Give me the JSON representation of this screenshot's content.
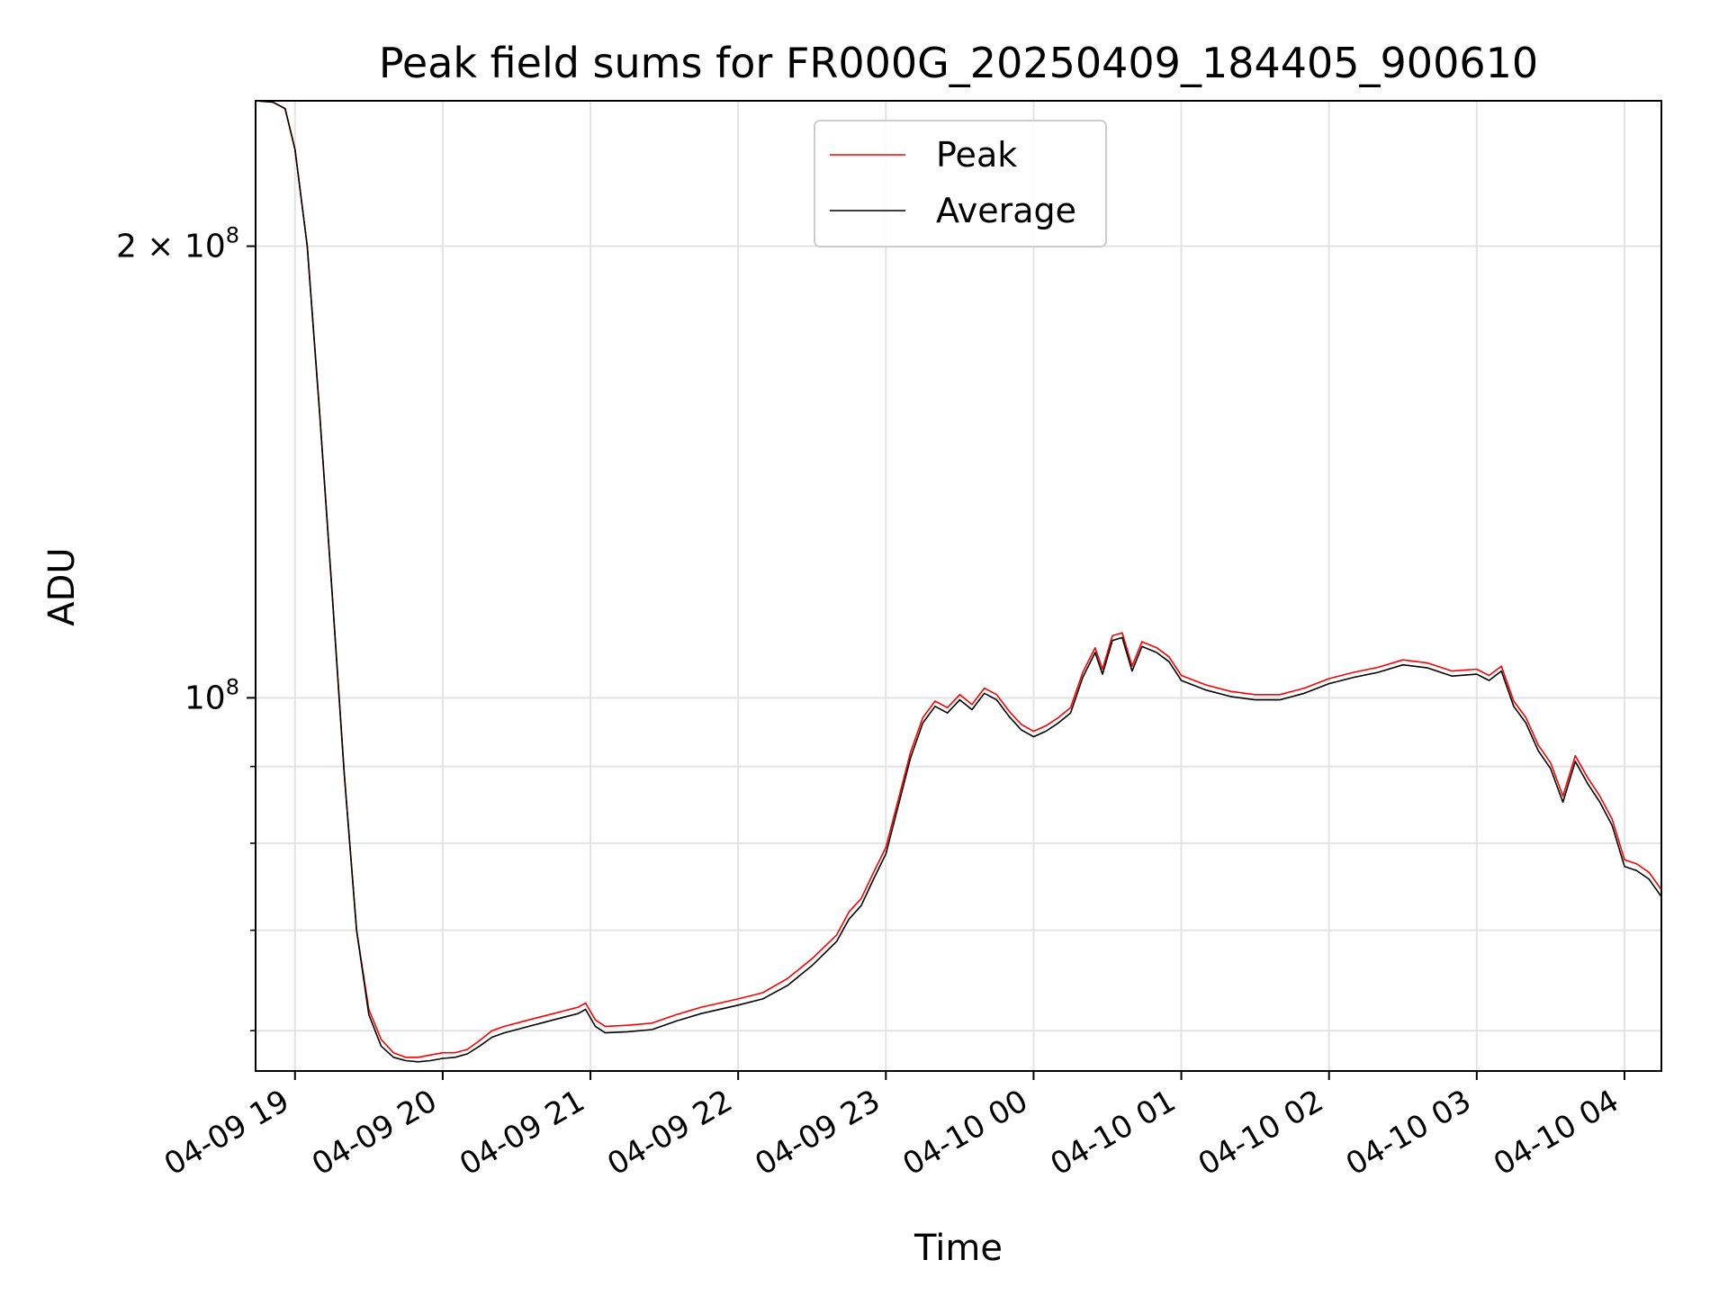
{
  "chart_data": {
    "type": "line",
    "title": "Peak field sums for FR000G_20250409_184405_900610",
    "xlabel": "Time",
    "ylabel": "ADU",
    "y_scale": "log",
    "grid": true,
    "legend_position": "upper center",
    "x_range": [
      "2025-04-09 18:44",
      "2025-04-10 04:15"
    ],
    "y_range": [
      56400000,
      250000000
    ],
    "x_ticks": [
      {
        "t": "2025-04-09 19:00",
        "label": "04-09 19"
      },
      {
        "t": "2025-04-09 20:00",
        "label": "04-09 20"
      },
      {
        "t": "2025-04-09 21:00",
        "label": "04-09 21"
      },
      {
        "t": "2025-04-09 22:00",
        "label": "04-09 22"
      },
      {
        "t": "2025-04-09 23:00",
        "label": "04-09 23"
      },
      {
        "t": "2025-04-10 00:00",
        "label": "04-10 00"
      },
      {
        "t": "2025-04-10 01:00",
        "label": "04-10 01"
      },
      {
        "t": "2025-04-10 02:00",
        "label": "04-10 02"
      },
      {
        "t": "2025-04-10 03:00",
        "label": "04-10 03"
      },
      {
        "t": "2025-04-10 04:00",
        "label": "04-10 04"
      }
    ],
    "y_major_ticks": [
      {
        "value": 100000000,
        "base": "10",
        "exp": "8"
      },
      {
        "value": 200000000,
        "base": "2 × 10",
        "exp": "8"
      }
    ],
    "y_minor_ticks": [
      60000000,
      70000000,
      80000000,
      90000000
    ],
    "series": [
      {
        "name": "Peak",
        "color": "#ff0000",
        "points": [
          [
            "2025-04-09 18:44",
            250000000
          ],
          [
            "2025-04-09 18:51",
            249500000
          ],
          [
            "2025-04-09 18:56",
            247000000
          ],
          [
            "2025-04-09 19:00",
            232000000
          ],
          [
            "2025-04-09 19:05",
            200000000
          ],
          [
            "2025-04-09 19:10",
            155000000
          ],
          [
            "2025-04-09 19:15",
            118000000
          ],
          [
            "2025-04-09 19:20",
            89000000
          ],
          [
            "2025-04-09 19:25",
            70000000
          ],
          [
            "2025-04-09 19:30",
            62000000
          ],
          [
            "2025-04-09 19:35",
            59200000
          ],
          [
            "2025-04-09 19:40",
            58000000
          ],
          [
            "2025-04-09 19:45",
            57600000
          ],
          [
            "2025-04-09 19:50",
            57600000
          ],
          [
            "2025-04-09 19:55",
            57800000
          ],
          [
            "2025-04-09 20:00",
            58000000
          ],
          [
            "2025-04-09 20:05",
            58000000
          ],
          [
            "2025-04-09 20:10",
            58300000
          ],
          [
            "2025-04-09 20:15",
            59100000
          ],
          [
            "2025-04-09 20:20",
            60000000
          ],
          [
            "2025-04-09 20:25",
            60400000
          ],
          [
            "2025-04-09 20:30",
            60700000
          ],
          [
            "2025-04-09 20:35",
            61000000
          ],
          [
            "2025-04-09 20:40",
            61300000
          ],
          [
            "2025-04-09 20:45",
            61600000
          ],
          [
            "2025-04-09 20:50",
            61900000
          ],
          [
            "2025-04-09 20:55",
            62200000
          ],
          [
            "2025-04-09 20:58",
            62600000
          ],
          [
            "2025-04-09 21:02",
            61000000
          ],
          [
            "2025-04-09 21:06",
            60400000
          ],
          [
            "2025-04-09 21:15",
            60500000
          ],
          [
            "2025-04-09 21:25",
            60700000
          ],
          [
            "2025-04-09 21:35",
            61500000
          ],
          [
            "2025-04-09 21:45",
            62200000
          ],
          [
            "2025-04-09 22:00",
            63000000
          ],
          [
            "2025-04-09 22:10",
            63600000
          ],
          [
            "2025-04-09 22:20",
            65000000
          ],
          [
            "2025-04-09 22:30",
            67000000
          ],
          [
            "2025-04-09 22:40",
            69500000
          ],
          [
            "2025-04-09 22:45",
            72000000
          ],
          [
            "2025-04-09 22:50",
            73500000
          ],
          [
            "2025-04-09 22:55",
            76500000
          ],
          [
            "2025-04-09 23:00",
            79500000
          ],
          [
            "2025-04-09 23:05",
            85500000
          ],
          [
            "2025-04-09 23:10",
            92000000
          ],
          [
            "2025-04-09 23:15",
            97000000
          ],
          [
            "2025-04-09 23:20",
            99500000
          ],
          [
            "2025-04-09 23:25",
            98500000
          ],
          [
            "2025-04-09 23:30",
            100500000
          ],
          [
            "2025-04-09 23:35",
            99000000
          ],
          [
            "2025-04-09 23:40",
            101500000
          ],
          [
            "2025-04-09 23:45",
            100500000
          ],
          [
            "2025-04-09 23:50",
            98000000
          ],
          [
            "2025-04-09 23:55",
            96000000
          ],
          [
            "2025-04-10 00:00",
            95000000
          ],
          [
            "2025-04-10 00:05",
            95800000
          ],
          [
            "2025-04-10 00:10",
            97000000
          ],
          [
            "2025-04-10 00:15",
            98500000
          ],
          [
            "2025-04-10 00:20",
            104000000
          ],
          [
            "2025-04-10 00:25",
            108000000
          ],
          [
            "2025-04-10 00:28",
            104500000
          ],
          [
            "2025-04-10 00:32",
            110000000
          ],
          [
            "2025-04-10 00:36",
            110500000
          ],
          [
            "2025-04-10 00:40",
            105000000
          ],
          [
            "2025-04-10 00:44",
            109000000
          ],
          [
            "2025-04-10 00:50",
            108000000
          ],
          [
            "2025-04-10 00:55",
            106500000
          ],
          [
            "2025-04-10 01:00",
            103500000
          ],
          [
            "2025-04-10 01:10",
            102000000
          ],
          [
            "2025-04-10 01:20",
            101000000
          ],
          [
            "2025-04-10 01:30",
            100500000
          ],
          [
            "2025-04-10 01:40",
            100500000
          ],
          [
            "2025-04-10 01:50",
            101500000
          ],
          [
            "2025-04-10 02:00",
            103000000
          ],
          [
            "2025-04-10 02:10",
            104000000
          ],
          [
            "2025-04-10 02:20",
            104800000
          ],
          [
            "2025-04-10 02:30",
            106000000
          ],
          [
            "2025-04-10 02:40",
            105500000
          ],
          [
            "2025-04-10 02:50",
            104200000
          ],
          [
            "2025-04-10 03:00",
            104500000
          ],
          [
            "2025-04-10 03:05",
            103500000
          ],
          [
            "2025-04-10 03:10",
            105000000
          ],
          [
            "2025-04-10 03:15",
            99500000
          ],
          [
            "2025-04-10 03:20",
            97000000
          ],
          [
            "2025-04-10 03:25",
            93000000
          ],
          [
            "2025-04-10 03:30",
            90500000
          ],
          [
            "2025-04-10 03:35",
            86000000
          ],
          [
            "2025-04-10 03:40",
            91500000
          ],
          [
            "2025-04-10 03:45",
            88500000
          ],
          [
            "2025-04-10 03:50",
            86000000
          ],
          [
            "2025-04-10 03:55",
            83000000
          ],
          [
            "2025-04-10 04:00",
            78000000
          ],
          [
            "2025-04-10 04:05",
            77500000
          ],
          [
            "2025-04-10 04:10",
            76500000
          ],
          [
            "2025-04-10 04:15",
            74500000
          ]
        ]
      },
      {
        "name": "Average",
        "color": "#000000",
        "points": [
          [
            "2025-04-09 18:44",
            250000000
          ],
          [
            "2025-04-09 18:51",
            249500000
          ],
          [
            "2025-04-09 18:56",
            247000000
          ],
          [
            "2025-04-09 19:00",
            232000000
          ],
          [
            "2025-04-09 19:05",
            200000000
          ],
          [
            "2025-04-09 19:10",
            155000000
          ],
          [
            "2025-04-09 19:15",
            118000000
          ],
          [
            "2025-04-09 19:20",
            89000000
          ],
          [
            "2025-04-09 19:25",
            70000000
          ],
          [
            "2025-04-09 19:30",
            61500000
          ],
          [
            "2025-04-09 19:35",
            58600000
          ],
          [
            "2025-04-09 19:40",
            57600000
          ],
          [
            "2025-04-09 19:45",
            57300000
          ],
          [
            "2025-04-09 19:50",
            57200000
          ],
          [
            "2025-04-09 19:55",
            57300000
          ],
          [
            "2025-04-09 20:00",
            57500000
          ],
          [
            "2025-04-09 20:05",
            57600000
          ],
          [
            "2025-04-09 20:10",
            57900000
          ],
          [
            "2025-04-09 20:15",
            58600000
          ],
          [
            "2025-04-09 20:20",
            59400000
          ],
          [
            "2025-04-09 20:25",
            59800000
          ],
          [
            "2025-04-09 20:30",
            60100000
          ],
          [
            "2025-04-09 20:35",
            60400000
          ],
          [
            "2025-04-09 20:40",
            60700000
          ],
          [
            "2025-04-09 20:45",
            61000000
          ],
          [
            "2025-04-09 20:50",
            61300000
          ],
          [
            "2025-04-09 20:55",
            61600000
          ],
          [
            "2025-04-09 20:58",
            62000000
          ],
          [
            "2025-04-09 21:02",
            60400000
          ],
          [
            "2025-04-09 21:06",
            59800000
          ],
          [
            "2025-04-09 21:15",
            59900000
          ],
          [
            "2025-04-09 21:25",
            60100000
          ],
          [
            "2025-04-09 21:35",
            60900000
          ],
          [
            "2025-04-09 21:45",
            61600000
          ],
          [
            "2025-04-09 22:00",
            62400000
          ],
          [
            "2025-04-09 22:10",
            63000000
          ],
          [
            "2025-04-09 22:20",
            64300000
          ],
          [
            "2025-04-09 22:30",
            66300000
          ],
          [
            "2025-04-09 22:40",
            68800000
          ],
          [
            "2025-04-09 22:45",
            71200000
          ],
          [
            "2025-04-09 22:50",
            72700000
          ],
          [
            "2025-04-09 22:55",
            75700000
          ],
          [
            "2025-04-09 23:00",
            78700000
          ],
          [
            "2025-04-09 23:05",
            84700000
          ],
          [
            "2025-04-09 23:10",
            91200000
          ],
          [
            "2025-04-09 23:15",
            96200000
          ],
          [
            "2025-04-09 23:20",
            98700000
          ],
          [
            "2025-04-09 23:25",
            97700000
          ],
          [
            "2025-04-09 23:30",
            99700000
          ],
          [
            "2025-04-09 23:35",
            98200000
          ],
          [
            "2025-04-09 23:40",
            100700000
          ],
          [
            "2025-04-09 23:45",
            99700000
          ],
          [
            "2025-04-09 23:50",
            97200000
          ],
          [
            "2025-04-09 23:55",
            95200000
          ],
          [
            "2025-04-10 00:00",
            94200000
          ],
          [
            "2025-04-10 00:05",
            95000000
          ],
          [
            "2025-04-10 00:10",
            96200000
          ],
          [
            "2025-04-10 00:15",
            97700000
          ],
          [
            "2025-04-10 00:20",
            103200000
          ],
          [
            "2025-04-10 00:25",
            107200000
          ],
          [
            "2025-04-10 00:28",
            103700000
          ],
          [
            "2025-04-10 00:32",
            109200000
          ],
          [
            "2025-04-10 00:36",
            109700000
          ],
          [
            "2025-04-10 00:40",
            104200000
          ],
          [
            "2025-04-10 00:44",
            108200000
          ],
          [
            "2025-04-10 00:50",
            107200000
          ],
          [
            "2025-04-10 00:55",
            105700000
          ],
          [
            "2025-04-10 01:00",
            102700000
          ],
          [
            "2025-04-10 01:10",
            101200000
          ],
          [
            "2025-04-10 01:20",
            100200000
          ],
          [
            "2025-04-10 01:30",
            99700000
          ],
          [
            "2025-04-10 01:40",
            99700000
          ],
          [
            "2025-04-10 01:50",
            100700000
          ],
          [
            "2025-04-10 02:00",
            102200000
          ],
          [
            "2025-04-10 02:10",
            103200000
          ],
          [
            "2025-04-10 02:20",
            104000000
          ],
          [
            "2025-04-10 02:30",
            105200000
          ],
          [
            "2025-04-10 02:40",
            104700000
          ],
          [
            "2025-04-10 02:50",
            103400000
          ],
          [
            "2025-04-10 03:00",
            103700000
          ],
          [
            "2025-04-10 03:05",
            102700000
          ],
          [
            "2025-04-10 03:10",
            104200000
          ],
          [
            "2025-04-10 03:15",
            98700000
          ],
          [
            "2025-04-10 03:20",
            96200000
          ],
          [
            "2025-04-10 03:25",
            92200000
          ],
          [
            "2025-04-10 03:30",
            89700000
          ],
          [
            "2025-04-10 03:35",
            85200000
          ],
          [
            "2025-04-10 03:40",
            90700000
          ],
          [
            "2025-04-10 03:45",
            87700000
          ],
          [
            "2025-04-10 03:50",
            85200000
          ],
          [
            "2025-04-10 03:55",
            82200000
          ],
          [
            "2025-04-10 04:00",
            77200000
          ],
          [
            "2025-04-10 04:05",
            76700000
          ],
          [
            "2025-04-10 04:10",
            75700000
          ],
          [
            "2025-04-10 04:15",
            73700000
          ]
        ]
      }
    ]
  }
}
